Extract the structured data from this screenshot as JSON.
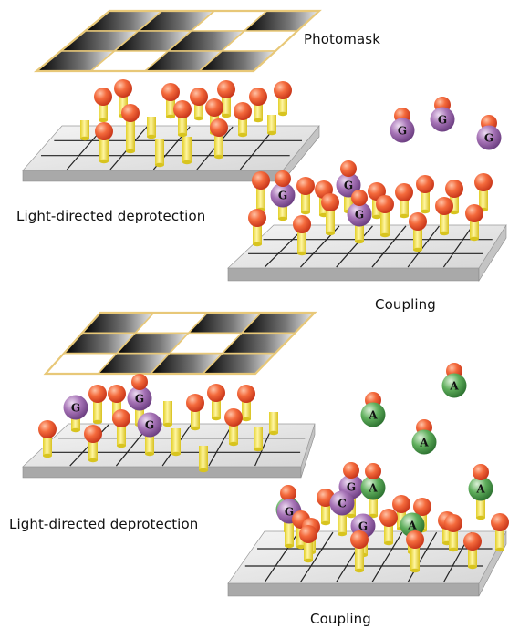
{
  "labels": {
    "photomask": "Photomask",
    "deprotection_1": "Light-directed deprotection",
    "coupling_1": "Coupling",
    "deprotection_2": "Light-directed deprotection",
    "coupling_2": "Coupling"
  },
  "nucleotides": {
    "guanine": "G",
    "adenine": "A",
    "cytosine": "C"
  },
  "colors": {
    "protecting_group": "#f0552a",
    "linker": "#f2e24a",
    "guanine": "#a06bb0",
    "adenine": "#5aa85a",
    "substrate": "#d9d9d9",
    "mask_frame": "#e8c878"
  }
}
